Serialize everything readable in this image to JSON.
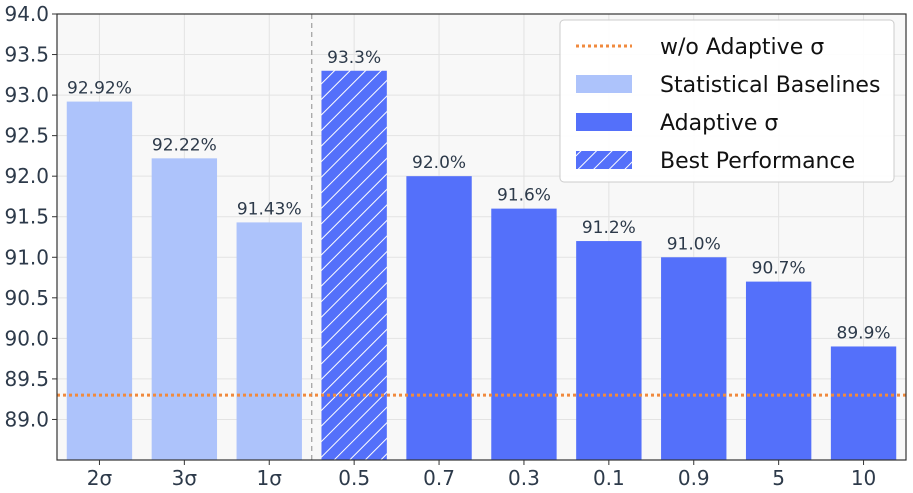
{
  "chart_data": {
    "type": "bar",
    "categories": [
      "2σ",
      "3σ",
      "1σ",
      "0.5",
      "0.7",
      "0.3",
      "0.1",
      "0.9",
      "5",
      "10"
    ],
    "values": [
      92.92,
      92.22,
      91.43,
      93.3,
      92.0,
      91.6,
      91.2,
      91.0,
      90.7,
      89.9
    ],
    "value_labels": [
      "92.92%",
      "92.22%",
      "91.43%",
      "93.3%",
      "92.0%",
      "91.6%",
      "91.2%",
      "91.0%",
      "90.7%",
      "89.9%"
    ],
    "bar_groups": [
      "baseline",
      "baseline",
      "baseline",
      "best",
      "adaptive",
      "adaptive",
      "adaptive",
      "adaptive",
      "adaptive",
      "adaptive"
    ],
    "ylim": [
      88.5,
      94.0
    ],
    "yticks": [
      89.0,
      89.5,
      90.0,
      90.5,
      91.0,
      91.5,
      92.0,
      92.5,
      93.0,
      93.5,
      94.0
    ],
    "reference_line": {
      "value": 89.3,
      "label": "w/o Adaptive σ",
      "style": "dotted",
      "color": "#f08a3e"
    },
    "divider_after_category": "1σ",
    "legend": {
      "placement": "top-right",
      "entries": [
        {
          "label": "w/o Adaptive σ",
          "kind": "dotted-line",
          "color": "#f08a3e"
        },
        {
          "label": "Statistical Baselines",
          "kind": "patch",
          "color": "#adc3fb"
        },
        {
          "label": "Adaptive σ",
          "kind": "patch",
          "color": "#5470fa"
        },
        {
          "label": "Best Performance",
          "kind": "hatched-patch",
          "color": "#5470fa"
        }
      ]
    },
    "colors": {
      "baseline": "#adc3fb",
      "adaptive": "#5470fa",
      "best": "#5470fa",
      "reference": "#f08a3e",
      "grid": "#e3e3e3"
    },
    "grid": true,
    "title": "",
    "xlabel": "",
    "ylabel": ""
  }
}
